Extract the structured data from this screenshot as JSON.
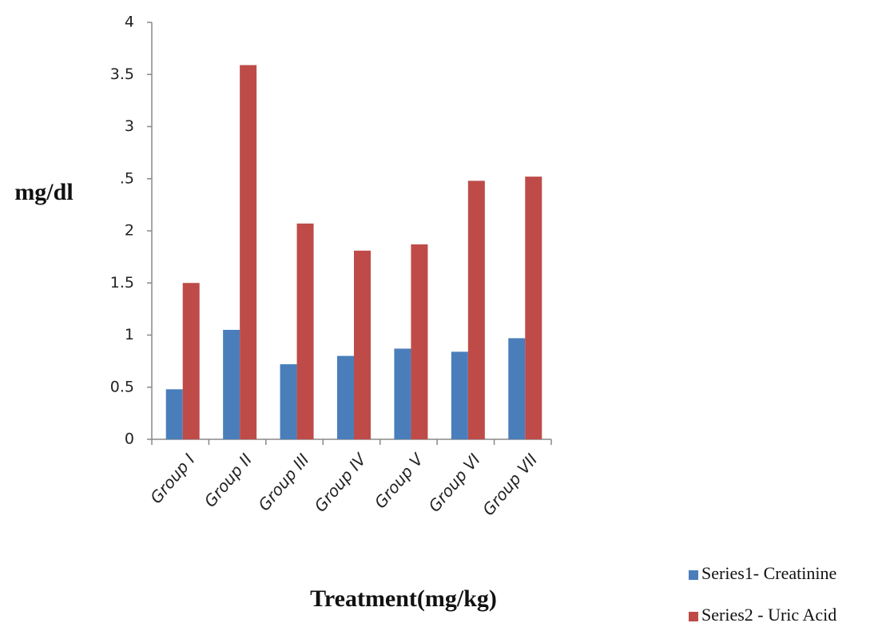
{
  "chart_data": {
    "type": "bar",
    "y_label": "mg/dl",
    "x_label": "Treatment(mg/kg)",
    "categories": [
      "Group I",
      "Group II",
      "Group III",
      "Group IV",
      "Group V",
      "Group VI",
      "Group VII"
    ],
    "series": [
      {
        "name": "Series1- Creatinine",
        "color": "#4a7ebb",
        "values": [
          0.48,
          1.05,
          0.72,
          0.8,
          0.87,
          0.84,
          0.97
        ]
      },
      {
        "name": "Series2 - Uric Acid",
        "color": "#be4b48",
        "values": [
          1.5,
          3.59,
          2.07,
          1.81,
          1.87,
          2.48,
          2.52
        ]
      }
    ],
    "ylim": [
      0,
      4
    ],
    "yticks": [
      0,
      0.5,
      1,
      1.5,
      2,
      {
        "value": 2.5,
        "label": ".5"
      },
      3,
      3.5,
      4
    ],
    "grid": false,
    "legend": "bottom-right"
  }
}
